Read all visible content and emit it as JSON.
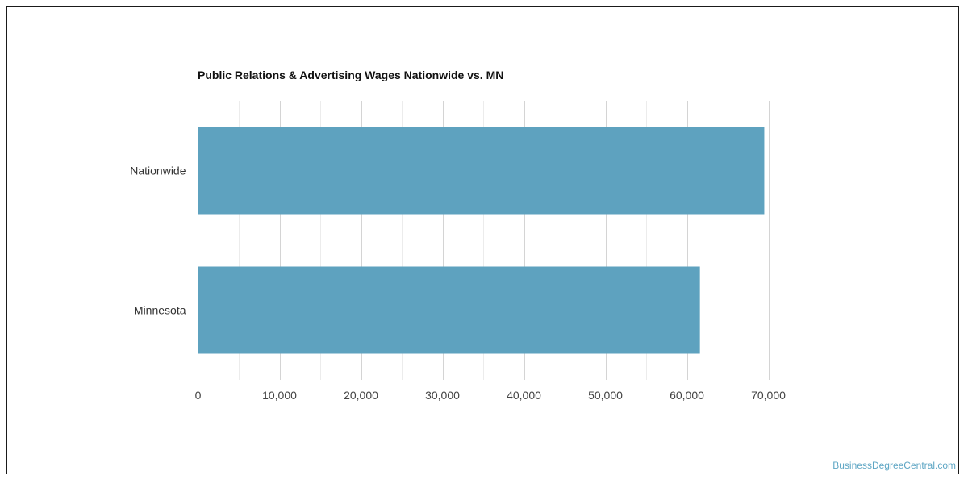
{
  "chart_data": {
    "type": "bar",
    "orientation": "horizontal",
    "title": "Public Relations & Advertising Wages Nationwide vs. MN",
    "xlabel": "",
    "ylabel": "",
    "categories": [
      "Nationwide",
      "Minnesota"
    ],
    "values": [
      69500,
      61600
    ],
    "xlim": [
      0,
      70000
    ],
    "xticks": [
      0,
      10000,
      20000,
      30000,
      40000,
      50000,
      60000,
      70000
    ],
    "xtick_labels": [
      "0",
      "10,000",
      "20,000",
      "30,000",
      "40,000",
      "50,000",
      "60,000",
      "70,000"
    ],
    "grid": true,
    "legend": "none",
    "bar_color": "#5ea2bf"
  },
  "watermark": "BusinessDegreeCentral.com"
}
